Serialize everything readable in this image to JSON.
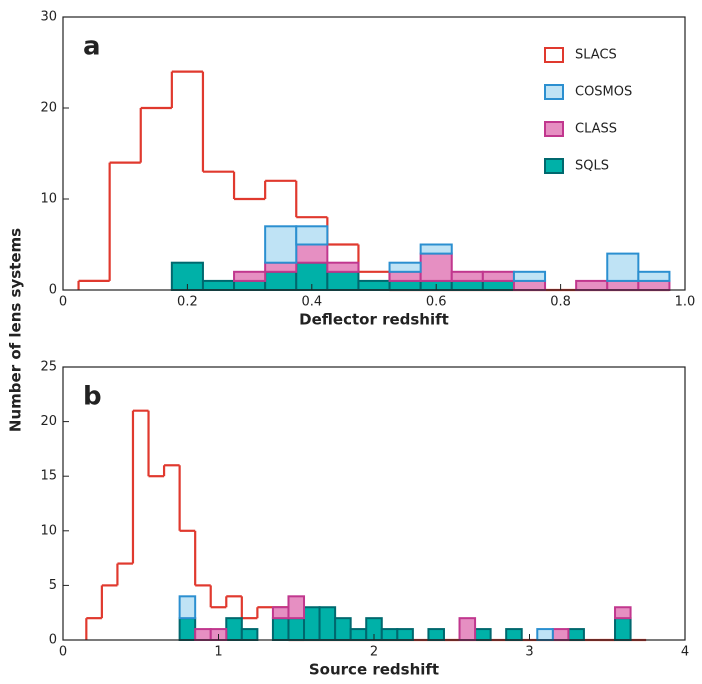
{
  "chart_data": [
    {
      "type": "histogram",
      "panel_label": "a",
      "xlabel": "Deflector redshift",
      "ylabel": "Number of lens systems",
      "bins": [
        0.025,
        0.075,
        0.125,
        0.175,
        0.225,
        0.275,
        0.325,
        0.375,
        0.425,
        0.475,
        0.525,
        0.575,
        0.625,
        0.675,
        0.725,
        0.775,
        0.825,
        0.875,
        0.925,
        0.975
      ],
      "stacked": true,
      "legend": "upper right",
      "series": [
        {
          "name": "SLACS",
          "color": "#e0392e",
          "histtype": "step",
          "values": [
            1,
            14,
            20,
            24,
            13,
            10,
            12,
            8,
            5,
            2,
            0,
            0,
            0,
            0,
            0,
            0,
            0,
            0,
            0
          ]
        },
        {
          "name": "COSMOS",
          "color": "#bfe3f5",
          "edgecolor": "#2b8fd0",
          "histtype": "bar",
          "values": [
            0,
            0,
            0,
            0,
            0,
            0,
            4,
            2,
            0,
            0,
            1,
            1,
            0,
            0,
            1,
            0,
            0,
            3,
            1
          ]
        },
        {
          "name": "CLASS",
          "color": "#e68fc2",
          "edgecolor": "#c1378e",
          "histtype": "bar",
          "values": [
            0,
            0,
            0,
            0,
            0,
            1,
            1,
            2,
            1,
            0,
            1,
            3,
            1,
            1,
            1,
            0,
            1,
            1,
            1
          ]
        },
        {
          "name": "SQLS",
          "color": "#00b1a8",
          "edgecolor": "#00686e",
          "histtype": "bar",
          "values": [
            0,
            0,
            0,
            3,
            1,
            1,
            2,
            3,
            2,
            1,
            1,
            1,
            1,
            1,
            0,
            0,
            0,
            0,
            0
          ]
        }
      ],
      "xlim": [
        0,
        1
      ],
      "xticks": [
        0,
        0.2,
        0.4,
        0.6,
        0.8,
        {
          "value": 1,
          "label": "1.0"
        }
      ],
      "ylim": [
        0,
        30
      ],
      "yticks": [
        0,
        10,
        20,
        30
      ]
    },
    {
      "type": "histogram",
      "panel_label": "b",
      "xlabel": "Source redshift",
      "bins": [
        0.15,
        0.25,
        0.35,
        0.45,
        0.55,
        0.65,
        0.75,
        0.85,
        0.95,
        1.05,
        1.15,
        1.25,
        1.35,
        1.45,
        1.55,
        1.65,
        1.75,
        1.85,
        1.95,
        2.05,
        2.15,
        2.25,
        2.35,
        2.45,
        2.55,
        2.65,
        2.75,
        2.85,
        2.95,
        3.05,
        3.15,
        3.25,
        3.35,
        3.45,
        3.55,
        3.65,
        3.75
      ],
      "stacked": true,
      "series": [
        {
          "color": "#e0392e",
          "histtype": "step",
          "values": [
            2,
            5,
            7,
            21,
            15,
            16,
            10,
            5,
            3,
            4,
            2,
            3,
            3,
            0,
            0,
            0,
            0,
            0,
            0,
            0,
            0,
            0,
            0,
            0,
            0,
            0,
            0,
            0,
            0,
            0,
            0,
            0,
            0,
            0,
            0,
            0
          ]
        },
        {
          "color": "#bfe3f5",
          "edgecolor": "#2b8fd0",
          "histtype": "bar",
          "values": [
            0,
            0,
            0,
            0,
            0,
            0,
            2,
            0,
            0,
            0,
            0,
            0,
            0,
            0,
            0,
            0,
            0,
            0,
            0,
            0,
            0,
            0,
            0,
            0,
            0,
            0,
            0,
            0,
            0,
            1,
            0,
            0,
            0,
            0,
            0,
            0
          ]
        },
        {
          "color": "#e68fc2",
          "edgecolor": "#c1378e",
          "histtype": "bar",
          "values": [
            0,
            0,
            0,
            0,
            0,
            0,
            0,
            1,
            1,
            0,
            0,
            0,
            1,
            2,
            0,
            0,
            0,
            0,
            0,
            0,
            0,
            0,
            0,
            0,
            2,
            0,
            0,
            0,
            0,
            0,
            1,
            0,
            0,
            0,
            1,
            0
          ]
        },
        {
          "color": "#00b1a8",
          "edgecolor": "#00686e",
          "histtype": "bar",
          "values": [
            0,
            0,
            0,
            0,
            0,
            0,
            2,
            0,
            0,
            2,
            1,
            0,
            2,
            2,
            3,
            3,
            2,
            1,
            2,
            1,
            1,
            0,
            1,
            0,
            0,
            1,
            0,
            1,
            0,
            0,
            0,
            1,
            0,
            0,
            2,
            0
          ]
        }
      ],
      "xlim": [
        0,
        4
      ],
      "xticks": [
        0,
        1,
        2,
        3,
        4
      ],
      "ylim": [
        0,
        25
      ],
      "yticks": [
        0,
        5,
        10,
        15,
        20,
        25
      ]
    }
  ]
}
